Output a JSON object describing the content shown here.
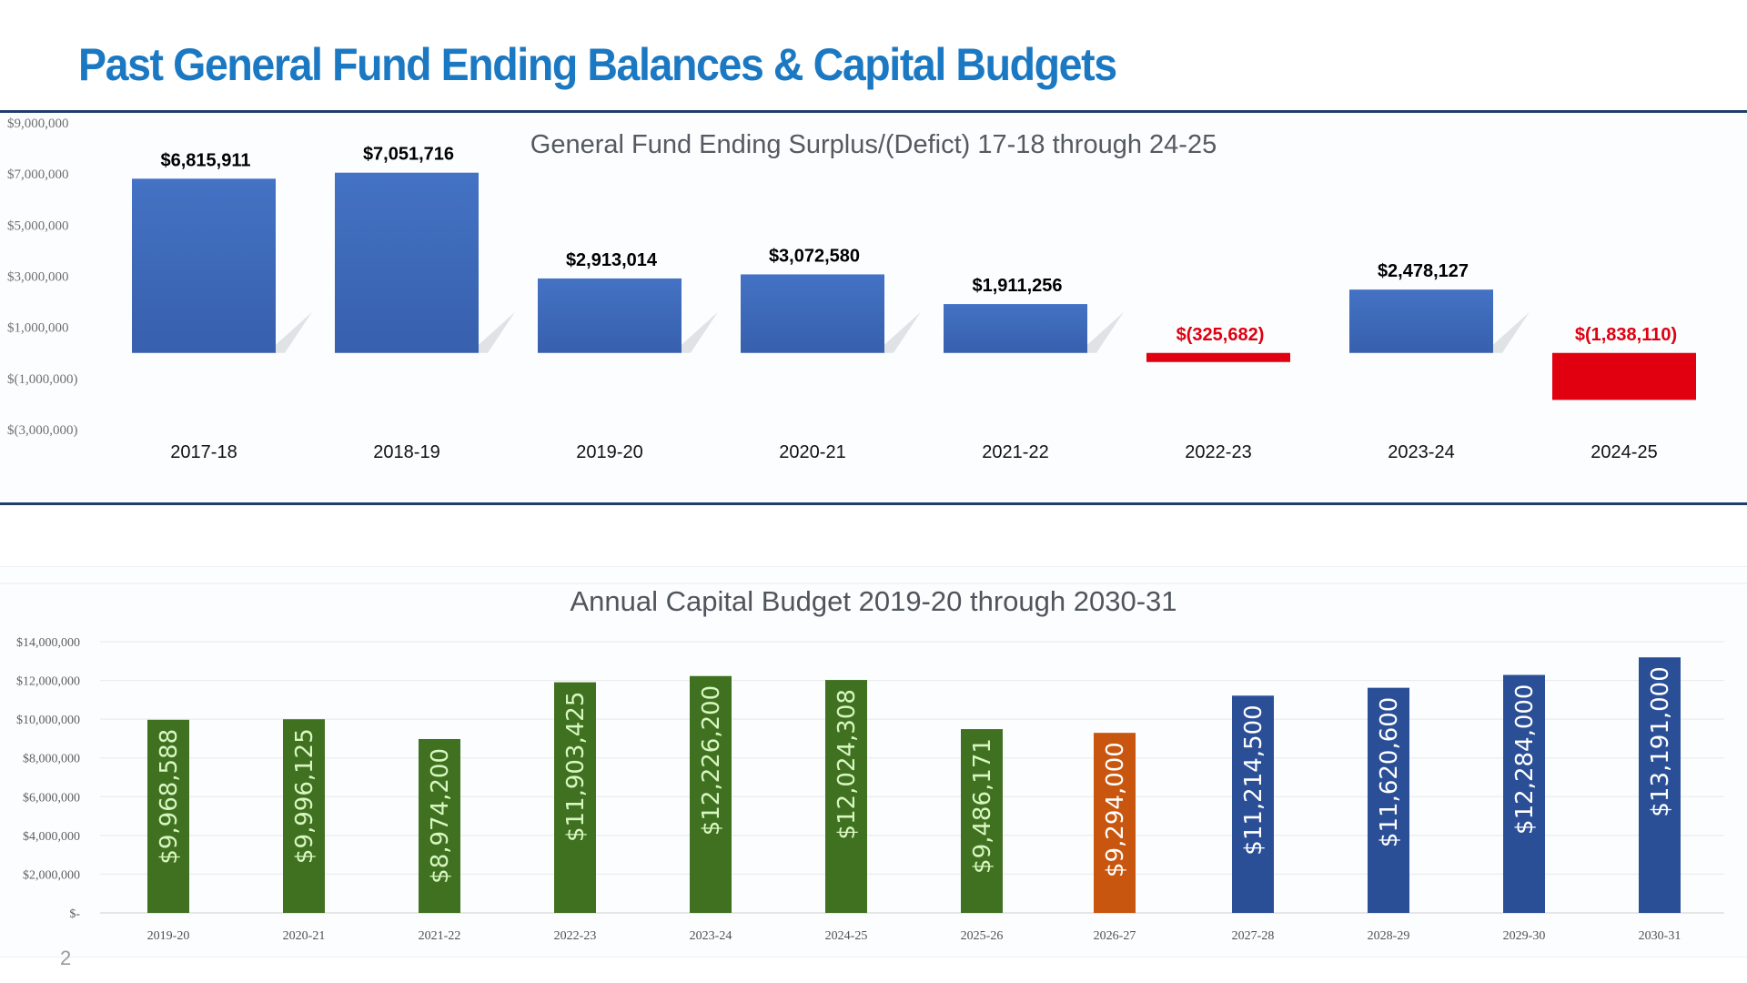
{
  "slide": {
    "title": "Past General Fund Ending Balances & Capital Budgets",
    "slide_number": "2",
    "title_color": "#1b78c2"
  },
  "chart_data": [
    {
      "type": "bar",
      "title": "General Fund Ending Surplus/(Defict) 17-18 through 24-25",
      "xlabel": "",
      "ylabel": "",
      "categories": [
        "2017-18",
        "2018-19",
        "2019-20",
        "2020-21",
        "2021-22",
        "2022-23",
        "2023-24",
        "2024-25"
      ],
      "values": [
        6815911,
        7051716,
        2913014,
        3072580,
        1911256,
        -325682,
        2478127,
        -1838110
      ],
      "data_labels": [
        "$6,815,911",
        "$7,051,716",
        "$2,913,014",
        "$3,072,580",
        "$1,911,256",
        "$(325,682)",
        "$2,478,127",
        "$(1,838,110)"
      ],
      "ylim": [
        -3000000,
        9000000
      ],
      "yticks": [
        9000000,
        7000000,
        5000000,
        3000000,
        1000000,
        -1000000,
        -3000000
      ],
      "ytick_labels": [
        "$9,000,000",
        "$7,000,000",
        "$5,000,000",
        "$3,000,000",
        "$1,000,000",
        "$(1,000,000)",
        "$(3,000,000)"
      ],
      "grid": false,
      "legend": "none",
      "colors": {
        "positive": "#4472c4",
        "negative": "#e00010",
        "positive_label": "#000000",
        "negative_label": "#e00010"
      }
    },
    {
      "type": "bar",
      "title": "Annual Capital Budget 2019-20 through 2030-31",
      "xlabel": "",
      "ylabel": "",
      "categories": [
        "2019-20",
        "2020-21",
        "2021-22",
        "2022-23",
        "2023-24",
        "2024-25",
        "2025-26",
        "2026-27",
        "2027-28",
        "2028-29",
        "2029-30",
        "2030-31"
      ],
      "values": [
        9968588,
        9996125,
        8974200,
        11903425,
        12226200,
        12024308,
        9486171,
        9294000,
        11214500,
        11620600,
        12284000,
        13191000
      ],
      "data_labels": [
        "$9,968,588",
        "$9,996,125",
        "$8,974,200",
        "$11,903,425",
        "$12,226,200",
        "$12,024,308",
        "$9,486,171",
        "$9,294,000",
        "$11,214,500",
        "$11,620,600",
        "$12,284,000",
        "$13,191,000"
      ],
      "bar_groups": [
        "actual",
        "actual",
        "actual",
        "actual",
        "actual",
        "actual",
        "actual",
        "current",
        "projected",
        "projected",
        "projected",
        "projected"
      ],
      "ylim": [
        0,
        14000000
      ],
      "yticks": [
        14000000,
        12000000,
        10000000,
        8000000,
        6000000,
        4000000,
        2000000,
        0
      ],
      "ytick_labels": [
        "$14,000,000",
        "$12,000,000",
        "$10,000,000",
        "$8,000,000",
        "$6,000,000",
        "$4,000,000",
        "$2,000,000",
        "$-"
      ],
      "grid": true,
      "legend": "none",
      "colors": {
        "actual": "#3f7121",
        "current": "#c8560f",
        "projected": "#2b4f97",
        "label_green": "#d8f7c0",
        "label_white": "#ffffff"
      }
    }
  ]
}
